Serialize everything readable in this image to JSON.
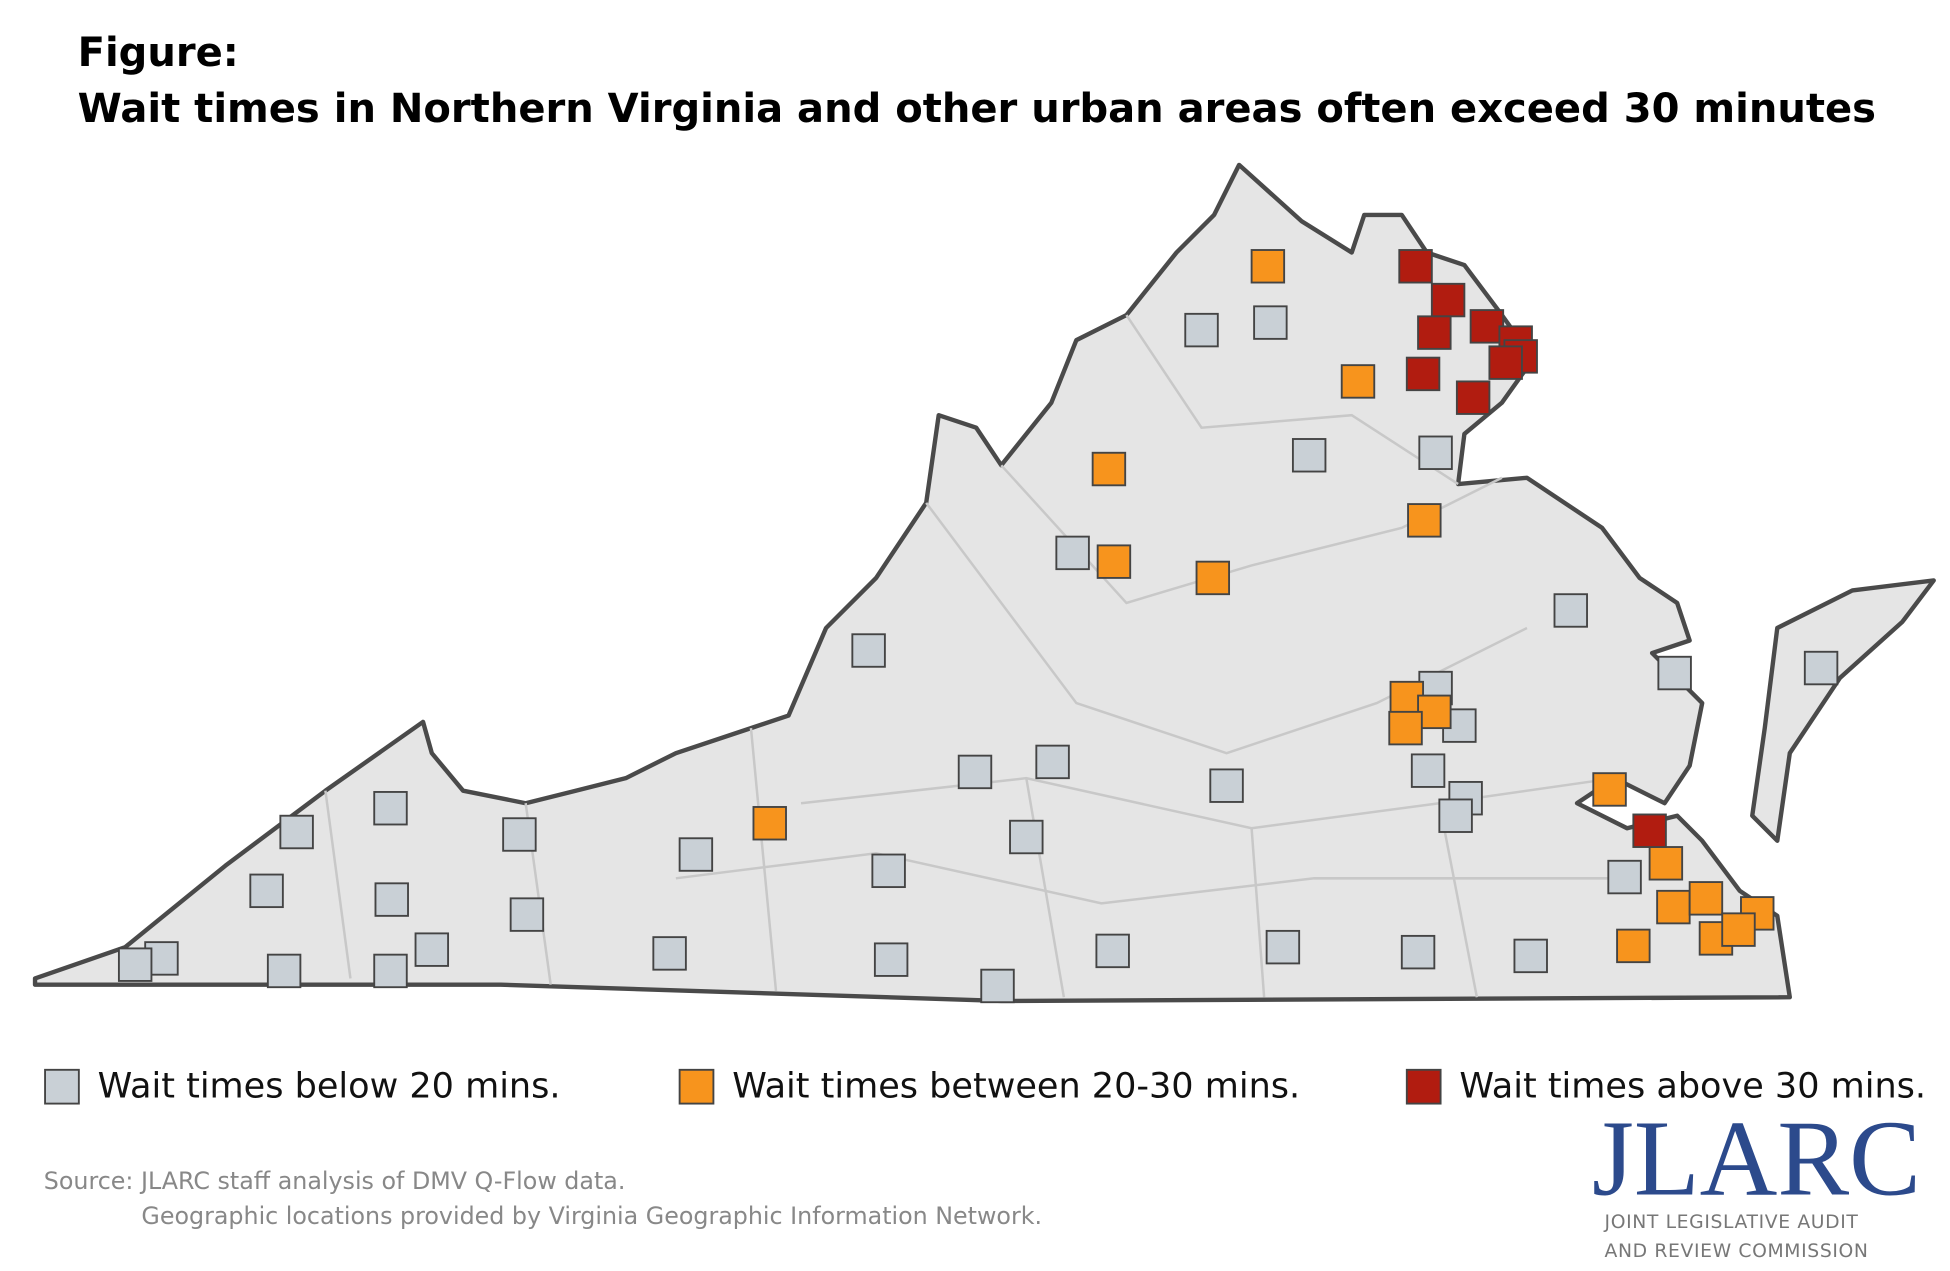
{
  "header": {
    "title_lines": [
      "Figure:",
      "Wait times in Northern Virginia and other urban areas often exceed 30 minutes"
    ]
  },
  "legend": [
    {
      "label": "Wait times below 20 mins.",
      "color": "#c9d0d6"
    },
    {
      "label": "Wait times between 20-30 mins.",
      "color": "#f7941d"
    },
    {
      "label": "Wait times above 30 mins.",
      "color": "#b11c10"
    }
  ],
  "source": [
    "Source: JLARC staff analysis of DMV Q-Flow data.",
    "Geographic locations provided by Virginia Geographic Information Network."
  ],
  "logo": {
    "name": "JLARC",
    "subtitle": [
      "JOINT LEGISLATIVE AUDIT",
      "AND REVIEW COMMISSION"
    ]
  }
}
